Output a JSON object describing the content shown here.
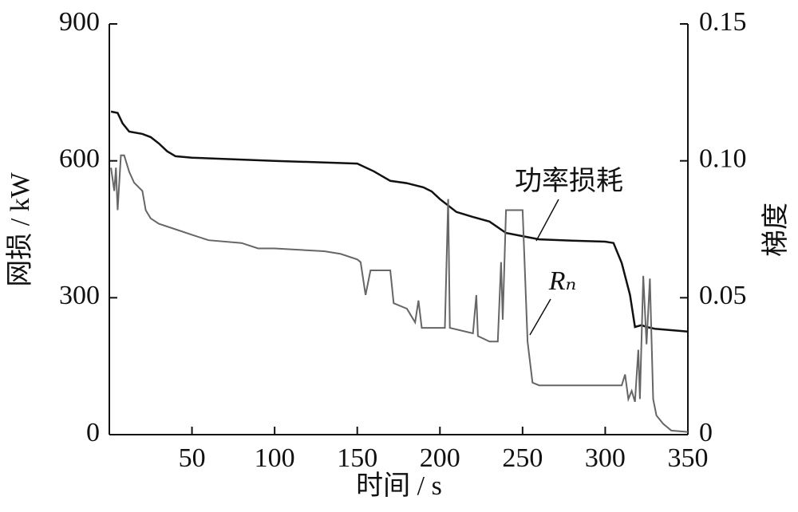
{
  "chart_data": {
    "type": "line",
    "x_label": "时间 / s",
    "y_label": "网损 / kW",
    "y2_label": "梯度",
    "xlim": [
      0,
      350
    ],
    "xticks": [
      50,
      100,
      150,
      200,
      250,
      300,
      350
    ],
    "ylim": [
      0,
      900
    ],
    "yticks": [
      0,
      300,
      600,
      900
    ],
    "y2lim": [
      0,
      0.15
    ],
    "y2ticks": [
      0,
      0.05,
      {
        "value": 0.1,
        "label": "0.10"
      },
      0.15
    ],
    "series": [
      {
        "name": "功率损耗",
        "color": "#111111",
        "x": [
          1,
          5,
          8,
          12,
          20,
          25,
          30,
          35,
          40,
          50,
          100,
          150,
          160,
          170,
          180,
          190,
          195,
          200,
          205,
          210,
          220,
          230,
          240,
          250,
          260,
          280,
          300,
          305,
          310,
          315,
          318,
          322,
          325,
          330,
          350
        ],
        "values": [
          708,
          705,
          682,
          664,
          659,
          652,
          638,
          621,
          610,
          607,
          600,
          594,
          577,
          556,
          551,
          542,
          533,
          516,
          502,
          488,
          477,
          467,
          442,
          435,
          428,
          425,
          423,
          420,
          376,
          306,
          236,
          240,
          236,
          232,
          226
        ]
      },
      {
        "name": "Rₙ",
        "color": "#666666",
        "axis": "y2",
        "x": [
          1,
          3,
          4,
          5,
          7,
          9,
          12,
          15,
          20,
          22,
          25,
          30,
          40,
          50,
          60,
          80,
          90,
          100,
          130,
          140,
          150,
          152,
          155,
          158,
          170,
          172,
          180,
          185,
          187,
          189,
          200,
          203,
          205,
          206,
          220,
          222,
          223,
          230,
          235,
          237,
          238,
          240,
          250,
          253,
          256,
          260,
          300,
          310,
          312,
          314,
          316,
          318,
          320,
          321,
          323,
          325,
          327,
          329,
          331,
          335,
          340,
          350
        ],
        "values": [
          0.0975,
          0.089,
          0.0975,
          0.082,
          0.102,
          0.102,
          0.096,
          0.092,
          0.089,
          0.082,
          0.079,
          0.077,
          0.075,
          0.073,
          0.071,
          0.07,
          0.068,
          0.068,
          0.067,
          0.066,
          0.064,
          0.063,
          0.051,
          0.06,
          0.06,
          0.048,
          0.046,
          0.041,
          0.049,
          0.039,
          0.039,
          0.039,
          0.086,
          0.039,
          0.037,
          0.051,
          0.036,
          0.034,
          0.034,
          0.063,
          0.042,
          0.082,
          0.082,
          0.034,
          0.019,
          0.018,
          0.018,
          0.018,
          0.022,
          0.013,
          0.016,
          0.012,
          0.031,
          0.013,
          0.058,
          0.033,
          0.057,
          0.013,
          0.007,
          0.004,
          0.0015,
          0.001
        ]
      }
    ]
  }
}
